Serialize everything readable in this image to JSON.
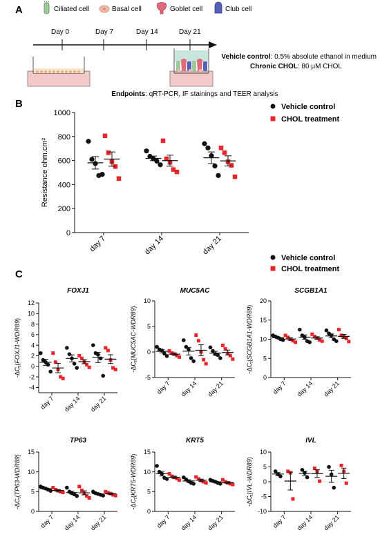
{
  "panel_labels": {
    "a": "A",
    "b": "B",
    "c": "C"
  },
  "panel_a": {
    "cell_legend": [
      {
        "name": "Ciliated cell",
        "icon": "ciliated-cell-icon",
        "color": "#9ec99a"
      },
      {
        "name": "Basal cell",
        "icon": "basal-cell-icon",
        "color": "#f2b8a8"
      },
      {
        "name": "Goblet cell",
        "icon": "goblet-cell-icon",
        "color": "#e06a7a"
      },
      {
        "name": "Club cell",
        "icon": "club-cell-icon",
        "color": "#5560b8"
      }
    ],
    "timeline": [
      "Day 0",
      "Day 7",
      "Day 14",
      "Day 21"
    ],
    "vehicle_label": "Vehicle control",
    "vehicle_text": ": 0.5% absolute ethanol in medium",
    "chol_label": "Chronic CHOL",
    "chol_text": ": 80 µM CHOL",
    "endpoints_label": "Endpoints",
    "endpoints_text": ": qRT-PCR, IF stainings and TEER analysis"
  },
  "colors": {
    "vehicle": "#111111",
    "chol": "#e8262a"
  },
  "chart_data": [
    {
      "id": "teer",
      "type": "scatter",
      "title": "",
      "xlabel": "",
      "ylabel": "Resistance ohm.cm²",
      "ylim": [
        0,
        1000
      ],
      "yticks": [
        0,
        200,
        400,
        600,
        800,
        1000
      ],
      "categories": [
        "day 7",
        "day 14",
        "day 21"
      ],
      "legend_placement": "top-right",
      "series": [
        {
          "name": "Vehicle control",
          "points": [
            [
              760,
              610,
              575,
              475,
              485
            ],
            [
              680,
              635,
              615,
              595,
              565
            ],
            [
              740,
              705,
              640,
              555,
              475
            ]
          ]
        },
        {
          "name": "CHOL treatment",
          "points": [
            [
              805,
              665,
              590,
              550,
              450
            ],
            [
              765,
              615,
              585,
              525,
              505
            ],
            [
              705,
              665,
              590,
              560,
              465
            ]
          ]
        }
      ]
    },
    {
      "id": "foxj1",
      "type": "scatter",
      "title": "FOXJ1",
      "ylabel_prefix": "-ΔC",
      "ylabel_sub": "t",
      "ylabel_italic": "FOXJ1-WDR89",
      "ylim": [
        -5,
        12
      ],
      "yticks": [
        -4,
        -2,
        0,
        2,
        4,
        6,
        8,
        10,
        12
      ],
      "categories": [
        "day 7",
        "day 14",
        "day 21"
      ],
      "legend_placement": "top-right",
      "series": [
        {
          "name": "Vehicle control",
          "points": [
            [
              2.5,
              1.2,
              0.8,
              0.3,
              -1.0
            ],
            [
              3.5,
              2.3,
              1.5,
              0.5,
              -0.3
            ],
            [
              4.0,
              2.5,
              2.2,
              1.5,
              -1.8
            ]
          ]
        },
        {
          "name": "CHOL treatment",
          "points": [
            [
              2.5,
              0.8,
              -0.6,
              -2.0,
              -2.3
            ],
            [
              2.0,
              1.5,
              0.8,
              0.3,
              -0.2
            ],
            [
              3.5,
              3.0,
              1.2,
              -0.3,
              -0.6
            ]
          ]
        }
      ]
    },
    {
      "id": "muc5ac",
      "type": "scatter",
      "title": "MUC5AC",
      "ylabel_prefix": "-ΔC",
      "ylabel_sub": "t",
      "ylabel_italic": "MUC5AC-WDR89",
      "ylim": [
        -5,
        10
      ],
      "yticks": [
        -5,
        0,
        5,
        10
      ],
      "categories": [
        "day 7",
        "day 14",
        "day 21"
      ],
      "legend_placement": "top-right",
      "series": [
        {
          "name": "Vehicle control",
          "points": [
            [
              1.0,
              0.5,
              0.3,
              -0.3,
              -0.8
            ],
            [
              2.3,
              1.0,
              0.5,
              -1.2,
              -1.8
            ],
            [
              0.9,
              0.2,
              -0.4,
              -0.6,
              -1.2
            ]
          ]
        },
        {
          "name": "CHOL treatment",
          "points": [
            [
              0.2,
              -0.2,
              -0.4,
              -0.7,
              -1.0
            ],
            [
              3.3,
              2.2,
              0.0,
              -1.5,
              -2.3
            ],
            [
              1.3,
              0.6,
              -0.3,
              -0.7,
              -1.4
            ]
          ]
        }
      ]
    },
    {
      "id": "scgb1a1",
      "type": "scatter",
      "title": "SCGB1A1",
      "ylabel_prefix": "-ΔC",
      "ylabel_sub": "t",
      "ylabel_italic": "SCGB1A1-WDR89",
      "ylim": [
        0,
        20
      ],
      "yticks": [
        0,
        5,
        10,
        15,
        20
      ],
      "categories": [
        "day 7",
        "day 14",
        "day 21"
      ],
      "legend_placement": "top-right",
      "series": [
        {
          "name": "Vehicle control",
          "points": [
            [
              11.0,
              10.7,
              10.4,
              10.0,
              9.8
            ],
            [
              12.5,
              11.0,
              10.5,
              9.5,
              9.2
            ],
            [
              12.3,
              11.5,
              11.0,
              10.0,
              9.5
            ]
          ]
        },
        {
          "name": "CHOL treatment",
          "points": [
            [
              11.0,
              10.5,
              10.0,
              9.6,
              9.2
            ],
            [
              11.3,
              10.7,
              10.3,
              9.8,
              9.5
            ],
            [
              12.5,
              11.0,
              10.6,
              10.2,
              9.4
            ]
          ]
        }
      ]
    },
    {
      "id": "tp63",
      "type": "scatter",
      "title": "TP63",
      "ylabel_prefix": "-ΔC",
      "ylabel_sub": "t",
      "ylabel_italic": "TP63-WDR89",
      "ylim": [
        0,
        15
      ],
      "yticks": [
        0,
        5,
        10,
        15
      ],
      "categories": [
        "day 7",
        "day 14",
        "day 21"
      ],
      "legend_placement": "top-right",
      "series": [
        {
          "name": "Vehicle control",
          "points": [
            [
              6.3,
              6.0,
              5.8,
              5.5,
              5.2
            ],
            [
              6.0,
              5.0,
              4.6,
              4.3,
              3.9
            ],
            [
              5.0,
              4.6,
              4.4,
              4.2,
              4.0
            ]
          ]
        },
        {
          "name": "CHOL treatment",
          "points": [
            [
              6.0,
              5.5,
              5.2,
              5.0,
              4.8
            ],
            [
              6.3,
              5.3,
              4.6,
              3.9,
              3.4
            ],
            [
              5.0,
              4.7,
              4.5,
              4.2,
              4.0
            ]
          ]
        }
      ]
    },
    {
      "id": "krt5",
      "type": "scatter",
      "title": "KRT5",
      "ylabel_prefix": "-ΔC",
      "ylabel_sub": "t",
      "ylabel_italic": "KRT5-WDR89",
      "ylim": [
        0,
        15
      ],
      "yticks": [
        0,
        5,
        10,
        15
      ],
      "categories": [
        "day 7",
        "day 14",
        "day 21"
      ],
      "legend_placement": "top-right",
      "series": [
        {
          "name": "Vehicle control",
          "points": [
            [
              11.5,
              10.0,
              9.5,
              8.5,
              8.2
            ],
            [
              8.6,
              8.1,
              7.6,
              7.2,
              7.0
            ],
            [
              8.0,
              7.7,
              7.5,
              7.2,
              7.0
            ]
          ]
        },
        {
          "name": "CHOL treatment",
          "points": [
            [
              9.5,
              8.9,
              8.6,
              8.3,
              7.9
            ],
            [
              8.7,
              8.2,
              7.8,
              7.5,
              7.2
            ],
            [
              8.0,
              7.5,
              7.2,
              7.0,
              6.8
            ]
          ]
        }
      ]
    },
    {
      "id": "ivl",
      "type": "scatter",
      "title": "IVL",
      "ylabel_prefix": "-ΔC",
      "ylabel_sub": "t",
      "ylabel_italic": "IVL-WDR89",
      "ylim": [
        -10,
        10
      ],
      "yticks": [
        -10,
        -5,
        0,
        5,
        10
      ],
      "categories": [
        "day 7",
        "day 14",
        "day 21"
      ],
      "legend_placement": "top-right",
      "series": [
        {
          "name": "Vehicle control",
          "points": [
            [
              3.5,
              2.5,
              1.8
            ],
            [
              4.0,
              3.0,
              1.5
            ],
            [
              5.0,
              2.5,
              -2.0
            ]
          ]
        },
        {
          "name": "CHOL treatment",
          "points": [
            [
              3.5,
              3.0,
              -5.8
            ],
            [
              4.5,
              3.5,
              0.2
            ],
            [
              5.5,
              3.5,
              -0.5
            ]
          ]
        }
      ]
    }
  ]
}
